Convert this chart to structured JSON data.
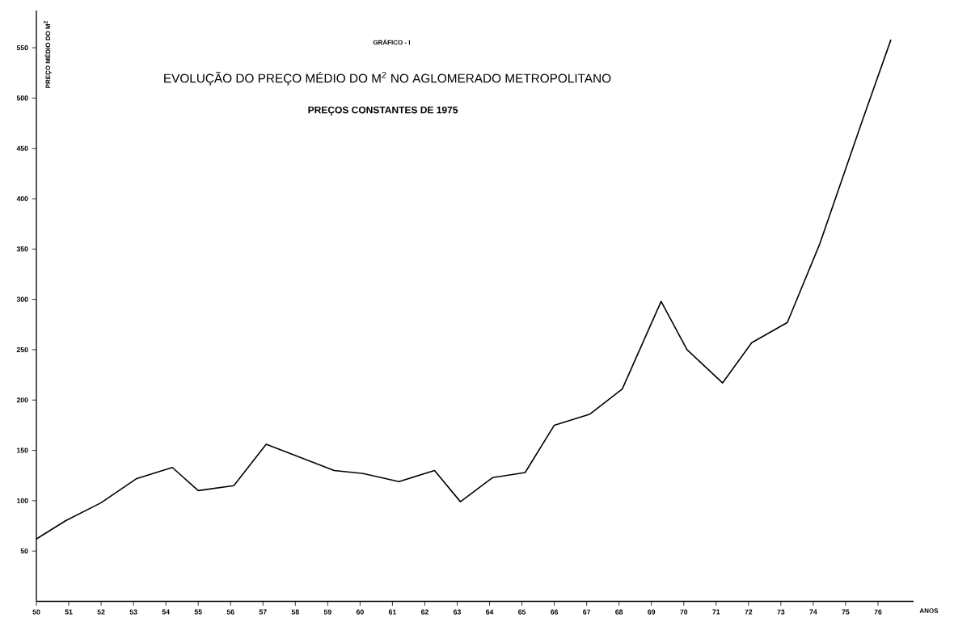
{
  "chart_data": {
    "type": "line",
    "title": "EVOLUÇÃO DO PREÇO MÉDIO DO M$^{2}$ NO AGLOMERADO METROPOLITANO",
    "subtitle": "PREÇOS CONSTANTES DE 1975",
    "annotations": [
      "GRÁFICO - I"
    ],
    "xlabel": "ANOS",
    "ylabel": "PREÇO MÉDIO DO M$^{2}$",
    "x": [
      50,
      50.9,
      52,
      53.1,
      54.2,
      55,
      56.1,
      57.1,
      59.2,
      60.1,
      61.2,
      62.3,
      63.1,
      64.1,
      65.1,
      66,
      67.1,
      68.1,
      69.3,
      70.1,
      71.2,
      72.1,
      73.2,
      74.2,
      75.5,
      76.4
    ],
    "series": [
      {
        "color": "#000000",
        "values": [
          62,
          80,
          98,
          122,
          133,
          110,
          115,
          156,
          130,
          127,
          119,
          130,
          99,
          123,
          128,
          175,
          186,
          211,
          298,
          250,
          217,
          257,
          277,
          355,
          476,
          558
        ]
      }
    ],
    "xlim": [
      50,
      77.1
    ],
    "ylim": [
      0,
      587
    ],
    "xticks": [
      50,
      51,
      52,
      53,
      54,
      55,
      56,
      57,
      58,
      59,
      60,
      61,
      62,
      63,
      64,
      65,
      66,
      67,
      68,
      69,
      70,
      71,
      72,
      73,
      74,
      75,
      76
    ],
    "yticks": [
      50,
      100,
      150,
      200,
      250,
      300,
      350,
      400,
      450,
      500,
      550
    ],
    "grid": false,
    "marker": "none",
    "line_style": "solid"
  }
}
